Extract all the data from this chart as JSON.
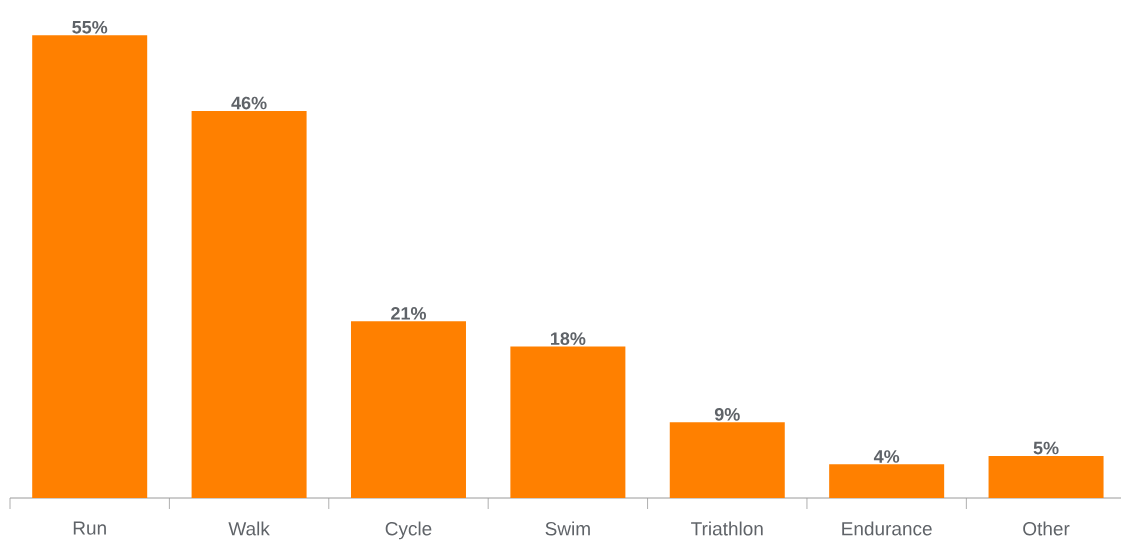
{
  "chart_data": {
    "type": "bar",
    "categories": [
      "Run",
      "Walk",
      "Cycle",
      "Swim",
      "Triathlon",
      "Endurance",
      "Other"
    ],
    "values": [
      55,
      46,
      21,
      18,
      9,
      4,
      5
    ],
    "value_labels": [
      "55%",
      "46%",
      "21%",
      "18%",
      "9%",
      "4%",
      "5%"
    ],
    "color": "#ff8000",
    "grid": false
  }
}
